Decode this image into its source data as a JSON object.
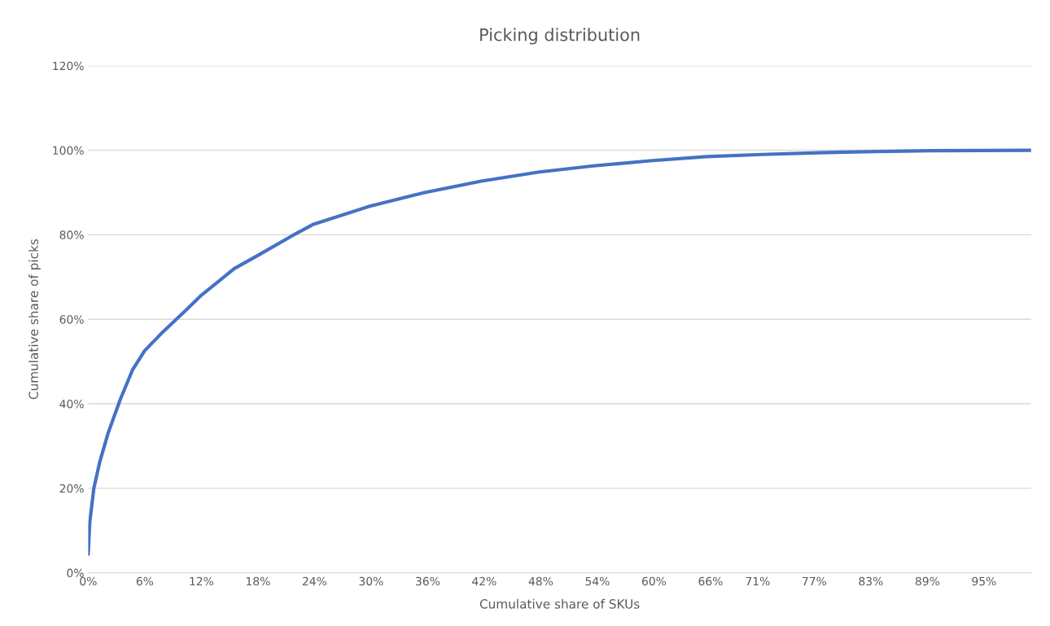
{
  "chart_data": {
    "type": "line",
    "title": "Picking distribution",
    "xlabel": "Cumulative share of SKUs",
    "ylabel": "Cumulative share of picks",
    "x": [
      0,
      0.17,
      0.6,
      1.2,
      2.1,
      3.4,
      4.7,
      6.0,
      7.7,
      10.3,
      11.9,
      15.5,
      17.9,
      21.5,
      23.9,
      29.8,
      35.7,
      41.7,
      47.7,
      53.6,
      59.6,
      65.6,
      71.5,
      77.5,
      83.5,
      89.4,
      100
    ],
    "series": [
      {
        "color": "#4472c4",
        "values": [
          4.4,
          12,
          20,
          26,
          33,
          41,
          48,
          52.6,
          56.5,
          62,
          65.5,
          72,
          75,
          79.6,
          82.5,
          86.7,
          90,
          92.7,
          94.8,
          96.3,
          97.5,
          98.5,
          99,
          99.4,
          99.7,
          99.9,
          100
        ]
      }
    ],
    "xlim": [
      0,
      100
    ],
    "xticks": [
      {
        "value": 0,
        "label": "0%"
      },
      {
        "value": 6,
        "label": "6%"
      },
      {
        "value": 12,
        "label": "12%"
      },
      {
        "value": 18,
        "label": "18%"
      },
      {
        "value": 24,
        "label": "24%"
      },
      {
        "value": 30,
        "label": "30%"
      },
      {
        "value": 36,
        "label": "36%"
      },
      {
        "value": 42,
        "label": "42%"
      },
      {
        "value": 48,
        "label": "48%"
      },
      {
        "value": 54,
        "label": "54%"
      },
      {
        "value": 60,
        "label": "60%"
      },
      {
        "value": 66,
        "label": "66%"
      },
      {
        "value": 71,
        "label": "71%"
      },
      {
        "value": 77,
        "label": "77%"
      },
      {
        "value": 83,
        "label": "83%"
      },
      {
        "value": 89,
        "label": "89%"
      },
      {
        "value": 95,
        "label": "95%"
      }
    ],
    "ylim": [
      0,
      120
    ],
    "yticks": [
      {
        "value": 0,
        "label": "0%"
      },
      {
        "value": 20,
        "label": "20%"
      },
      {
        "value": 40,
        "label": "40%"
      },
      {
        "value": 60,
        "label": "60%"
      },
      {
        "value": 80,
        "label": "80%"
      },
      {
        "value": 100,
        "label": "100%"
      },
      {
        "value": 120,
        "label": "120%"
      }
    ],
    "grid": "y",
    "marker": "none",
    "line_style": "solid"
  }
}
